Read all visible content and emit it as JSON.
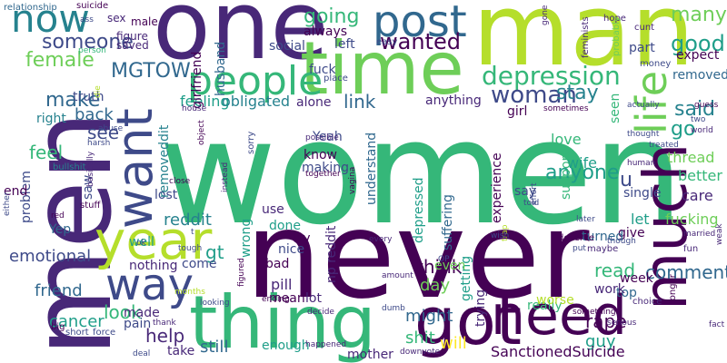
{
  "palette": [
    "#440154",
    "#482878",
    "#3e4a89",
    "#31688e",
    "#26828e",
    "#1f9e89",
    "#35b779",
    "#6ece58",
    "#b5de2b",
    "#fde725"
  ],
  "words": [
    {
      "text": "women",
      "color": "#35b779"
    },
    {
      "text": "never",
      "color": "#440154"
    },
    {
      "text": "men",
      "color": "#482878"
    },
    {
      "text": "man",
      "color": "#b5de2b"
    },
    {
      "text": "one",
      "color": "#482878"
    },
    {
      "text": "time",
      "color": "#6ece58"
    },
    {
      "text": "thing",
      "color": "#35b779"
    },
    {
      "text": "got",
      "color": "#440154"
    },
    {
      "text": "need",
      "color": "#440154"
    },
    {
      "text": "much",
      "color": "#440154"
    },
    {
      "text": "want",
      "color": "#3e4a89"
    },
    {
      "text": "year",
      "color": "#b5de2b"
    },
    {
      "text": "way",
      "color": "#3e4a89"
    },
    {
      "text": "post",
      "color": "#31688e"
    },
    {
      "text": "people",
      "color": "#35b779"
    },
    {
      "text": "life",
      "color": "#6ece58"
    },
    {
      "text": "now",
      "color": "#26828e"
    },
    {
      "text": "depression",
      "color": "#35b779"
    },
    {
      "text": "woman",
      "color": "#3e4a89"
    },
    {
      "text": "going",
      "color": "#35b779"
    },
    {
      "text": "wanted",
      "color": "#440154"
    },
    {
      "text": "someone",
      "color": "#3e4a89"
    },
    {
      "text": "good",
      "color": "#1f9e89"
    },
    {
      "text": "many",
      "color": "#6ece58"
    },
    {
      "text": "removed",
      "color": "#31688e"
    },
    {
      "text": "MGTOW",
      "color": "#31688e"
    },
    {
      "text": "female",
      "color": "#6ece58"
    },
    {
      "text": "make",
      "color": "#31688e"
    },
    {
      "text": "link",
      "color": "#31688e"
    },
    {
      "text": "stay",
      "color": "#26828e"
    },
    {
      "text": "said",
      "color": "#26828e"
    },
    {
      "text": "go",
      "color": "#1f9e89"
    },
    {
      "text": "u",
      "color": "#3e4a89"
    },
    {
      "text": "feel",
      "color": "#35b779"
    },
    {
      "text": "see",
      "color": "#3e4a89"
    },
    {
      "text": "back",
      "color": "#31688e"
    },
    {
      "text": "anyone",
      "color": "#1f9e89"
    },
    {
      "text": "feeling",
      "color": "#1f9e89"
    },
    {
      "text": "obligated",
      "color": "#26828e"
    },
    {
      "text": "alone",
      "color": "#482878"
    },
    {
      "text": "anything",
      "color": "#482878"
    },
    {
      "text": "emotional",
      "color": "#3e4a89"
    },
    {
      "text": "reddit",
      "color": "#26828e"
    },
    {
      "text": "gt",
      "color": "#1f9e89"
    },
    {
      "text": "think",
      "color": "#440154"
    },
    {
      "text": "read",
      "color": "#35b779"
    },
    {
      "text": "comments",
      "color": "#31688e"
    },
    {
      "text": "friend",
      "color": "#31688e"
    },
    {
      "text": "look",
      "color": "#35b779"
    },
    {
      "text": "help",
      "color": "#482878"
    },
    {
      "text": "cancer",
      "color": "#1f9e89"
    },
    {
      "text": "rape",
      "color": "#440154"
    },
    {
      "text": "day",
      "color": "#6ece58"
    },
    {
      "text": "might",
      "color": "#31688e"
    },
    {
      "text": "shit",
      "color": "#35b779"
    },
    {
      "text": "will",
      "color": "#fde725"
    },
    {
      "text": "guy",
      "color": "#1f9e89"
    },
    {
      "text": "still",
      "color": "#31688e"
    },
    {
      "text": "np reddit",
      "color": "#482878"
    },
    {
      "text": "pill",
      "color": "#482878"
    },
    {
      "text": "SanctionedSuicide",
      "color": "#440154"
    },
    {
      "text": "love",
      "color": "#35b779"
    },
    {
      "text": "wife",
      "color": "#1f9e89"
    },
    {
      "text": "better",
      "color": "#35b779"
    },
    {
      "text": "care",
      "color": "#482878"
    },
    {
      "text": "fucking",
      "color": "#6ece58"
    },
    {
      "text": "let",
      "color": "#1f9e89"
    },
    {
      "text": "thread",
      "color": "#6ece58"
    },
    {
      "text": "single",
      "color": "#3e4a89"
    },
    {
      "text": "say",
      "color": "#3e4a89"
    },
    {
      "text": "lost",
      "color": "#3e4a89"
    },
    {
      "text": "well",
      "color": "#1f9e89"
    },
    {
      "text": "wrong",
      "color": "#1f9e89"
    },
    {
      "text": "nothing",
      "color": "#482878"
    },
    {
      "text": "come",
      "color": "#3e4a89"
    },
    {
      "text": "made",
      "color": "#482878"
    },
    {
      "text": "pain",
      "color": "#3e4a89"
    },
    {
      "text": "take",
      "color": "#482878"
    },
    {
      "text": "enough",
      "color": "#1f9e89"
    },
    {
      "text": "mean",
      "color": "#440154"
    },
    {
      "text": "lot",
      "color": "#482878"
    },
    {
      "text": "really",
      "color": "#35b779"
    },
    {
      "text": "worse",
      "color": "#b5de2b"
    },
    {
      "text": "top",
      "color": "#31688e"
    },
    {
      "text": "week",
      "color": "#440154"
    },
    {
      "text": "give",
      "color": "#440154"
    },
    {
      "text": "work",
      "color": "#482878"
    },
    {
      "text": "getting",
      "color": "#1f9e89"
    },
    {
      "text": "trying",
      "color": "#482878"
    },
    {
      "text": "turned",
      "color": "#31688e"
    },
    {
      "text": "even",
      "color": "#6ece58"
    },
    {
      "text": "suffering",
      "color": "#31688e"
    },
    {
      "text": "depressed",
      "color": "#1f9e89"
    },
    {
      "text": "understand",
      "color": "#31688e"
    },
    {
      "text": "experience",
      "color": "#440154"
    },
    {
      "text": "support",
      "color": "#35b779"
    },
    {
      "text": "seen",
      "color": "#35b779"
    },
    {
      "text": "part",
      "color": "#3e4a89"
    },
    {
      "text": "expect",
      "color": "#440154"
    },
    {
      "text": "girl",
      "color": "#440154"
    },
    {
      "text": "fuck",
      "color": "#3e4a89"
    },
    {
      "text": "social",
      "color": "#3e4a89"
    },
    {
      "text": "always",
      "color": "#440154"
    },
    {
      "text": "left",
      "color": "#3e4a89"
    },
    {
      "text": "husband",
      "color": "#31688e"
    },
    {
      "text": "girlfriend",
      "color": "#440154"
    },
    {
      "text": "truth",
      "color": "#3e4a89"
    },
    {
      "text": "right",
      "color": "#26828e"
    },
    {
      "text": "Yeah",
      "color": "#3e4a89"
    },
    {
      "text": "know",
      "color": "#440154"
    },
    {
      "text": "making",
      "color": "#3e4a89"
    },
    {
      "text": "try",
      "color": "#440154"
    },
    {
      "text": "nice",
      "color": "#3e4a89"
    },
    {
      "text": "bad",
      "color": "#440154"
    },
    {
      "text": "use",
      "color": "#482878"
    },
    {
      "text": "done",
      "color": "#1f9e89"
    },
    {
      "text": "problem",
      "color": "#3e4a89"
    },
    {
      "text": "Yep",
      "color": "#31688e"
    },
    {
      "text": "end",
      "color": "#440154"
    },
    {
      "text": "saw",
      "color": "#3e4a89"
    },
    {
      "text": "removeddit",
      "color": "#26828e"
    },
    {
      "text": "mother",
      "color": "#482878"
    },
    {
      "text": "sex",
      "color": "#482878"
    },
    {
      "text": "male",
      "color": "#440154"
    },
    {
      "text": "figure",
      "color": "#482878"
    },
    {
      "text": "saved",
      "color": "#482878"
    },
    {
      "text": "relationship",
      "color": "#31688e"
    },
    {
      "text": "suicide",
      "color": "#440154"
    },
    {
      "text": "ass",
      "color": "#3e4a89"
    },
    {
      "text": "feminists",
      "color": "#482878"
    },
    {
      "text": "person",
      "color": "#35b779"
    },
    {
      "text": "hope",
      "color": "#482878"
    },
    {
      "text": "cunt",
      "color": "#482878"
    },
    {
      "text": "money",
      "color": "#3e4a89"
    },
    {
      "text": "probably",
      "color": "#6ece58"
    },
    {
      "text": "gone",
      "color": "#482878"
    },
    {
      "text": "easy",
      "color": "#3e4a89"
    },
    {
      "text": "place",
      "color": "#3e4a89"
    },
    {
      "text": "sorry",
      "color": "#3e4a89"
    },
    {
      "text": "house",
      "color": "#482878"
    },
    {
      "text": "abuse",
      "color": "#3e4a89"
    },
    {
      "text": "harsh",
      "color": "#3e4a89"
    },
    {
      "text": "bullshit",
      "color": "#26828e"
    },
    {
      "text": "short",
      "color": "#3e4a89"
    },
    {
      "text": "force",
      "color": "#3e4a89"
    },
    {
      "text": "big",
      "color": "#440154"
    },
    {
      "text": "stuff",
      "color": "#440154"
    },
    {
      "text": "red",
      "color": "#440154"
    },
    {
      "text": "basically",
      "color": "#482878"
    },
    {
      "text": "either",
      "color": "#3e4a89"
    },
    {
      "text": "close",
      "color": "#440154"
    },
    {
      "text": "instead",
      "color": "#482878"
    },
    {
      "text": "together",
      "color": "#440154"
    },
    {
      "text": "possible",
      "color": "#482878"
    },
    {
      "text": "looking",
      "color": "#3e4a89"
    },
    {
      "text": "thank",
      "color": "#482878"
    },
    {
      "text": "deal",
      "color": "#3e4a89"
    },
    {
      "text": "tough",
      "color": "#3e4a89"
    },
    {
      "text": "figured",
      "color": "#440154"
    },
    {
      "text": "ending",
      "color": "#440154"
    },
    {
      "text": "amount",
      "color": "#482878"
    },
    {
      "text": "decide",
      "color": "#482878"
    },
    {
      "text": "happened",
      "color": "#482878"
    },
    {
      "text": "downvote",
      "color": "#482878"
    },
    {
      "text": "dumb",
      "color": "#3e4a89"
    },
    {
      "text": "every",
      "color": "#482878"
    },
    {
      "text": "something",
      "color": "#440154"
    },
    {
      "text": "OP",
      "color": "#3e4a89"
    },
    {
      "text": "trap",
      "color": "#b5de2b"
    },
    {
      "text": "wish",
      "color": "#3e4a89"
    },
    {
      "text": "deserve",
      "color": "#440154"
    },
    {
      "text": "maybe",
      "color": "#482878"
    },
    {
      "text": "married",
      "color": "#482878"
    },
    {
      "text": "fun",
      "color": "#482878"
    },
    {
      "text": "choice",
      "color": "#482878"
    },
    {
      "text": "serious",
      "color": "#482878"
    },
    {
      "text": "longer",
      "color": "#440154"
    },
    {
      "text": "fact",
      "color": "#482878"
    },
    {
      "text": "thought",
      "color": "#3e4a89"
    },
    {
      "text": "told",
      "color": "#3e4a89"
    },
    {
      "text": "effort",
      "color": "#3e4a89"
    },
    {
      "text": "human",
      "color": "#482878"
    },
    {
      "text": "later",
      "color": "#3e4a89"
    },
    {
      "text": "though",
      "color": "#3e4a89"
    },
    {
      "text": "put",
      "color": "#3e4a89"
    },
    {
      "text": "treated",
      "color": "#3e4a89"
    },
    {
      "text": "world",
      "color": "#482878"
    },
    {
      "text": "weak",
      "color": "#482878"
    },
    {
      "text": "two",
      "color": "#3e4a89"
    },
    {
      "text": "guess",
      "color": "#440154"
    },
    {
      "text": "actually",
      "color": "#3e4a89"
    },
    {
      "text": "sometimes",
      "color": "#440154"
    },
    {
      "text": "object",
      "color": "#440154"
    },
    {
      "text": "vagina",
      "color": "#440154"
    },
    {
      "text": "months",
      "color": "#b5de2b"
    },
    {
      "text": "ok",
      "color": "#3e4a89"
    },
    {
      "text": "die",
      "color": "#b5de2b"
    },
    {
      "text": "t",
      "color": "#3e4a89"
    }
  ]
}
